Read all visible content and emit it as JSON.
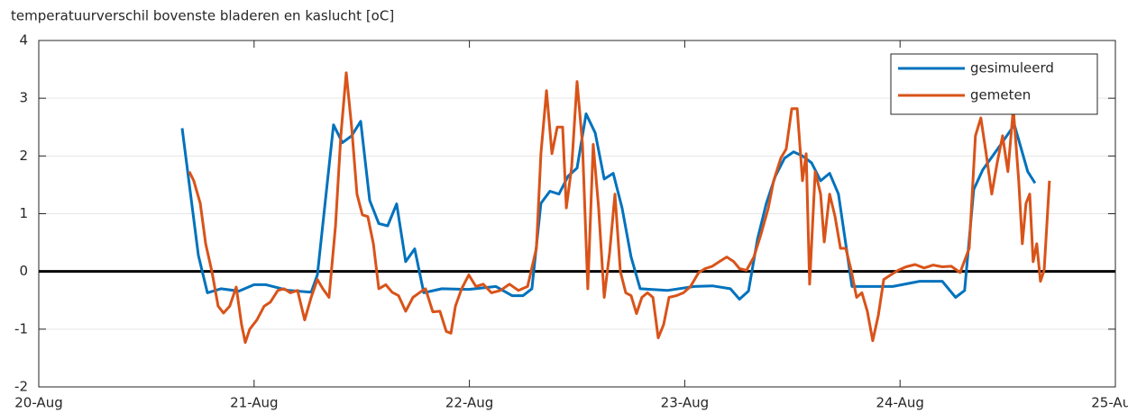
{
  "chart_data": {
    "type": "line",
    "title": "temperatuurverschil bovenste bladeren en kaslucht [oC]",
    "xlim": [
      0,
      5
    ],
    "xticks": [
      {
        "value": 0,
        "label": "20-Aug"
      },
      {
        "value": 1,
        "label": "21-Aug"
      },
      {
        "value": 2,
        "label": "22-Aug"
      },
      {
        "value": 3,
        "label": "23-Aug"
      },
      {
        "value": 4,
        "label": "24-Aug"
      },
      {
        "value": 5,
        "label": "25-Aug"
      }
    ],
    "ylim": [
      -2,
      4
    ],
    "yticks": [
      -2,
      -1,
      0,
      1,
      2,
      3,
      4
    ],
    "grid": true,
    "hlines": [
      0
    ],
    "legend": "northeast",
    "series": [
      {
        "name": "gesimuleerd",
        "color": "#0072BD",
        "x": [
          0.666,
          0.741,
          0.783,
          0.846,
          0.93,
          1.0,
          1.055,
          1.16,
          1.265,
          1.294,
          1.369,
          1.41,
          1.453,
          1.495,
          1.537,
          1.579,
          1.62,
          1.662,
          1.704,
          1.746,
          1.788,
          1.872,
          1.997,
          2.123,
          2.198,
          2.249,
          2.29,
          2.332,
          2.374,
          2.416,
          2.458,
          2.5,
          2.542,
          2.584,
          2.626,
          2.668,
          2.709,
          2.751,
          2.793,
          2.919,
          3.044,
          3.128,
          3.212,
          3.254,
          3.296,
          3.338,
          3.379,
          3.421,
          3.463,
          3.505,
          3.547,
          3.589,
          3.631,
          3.673,
          3.714,
          3.777,
          3.882,
          3.966,
          4.091,
          4.196,
          4.258,
          4.3,
          4.342,
          4.384,
          4.468,
          4.531,
          4.593,
          4.627
        ],
        "values": [
          2.48,
          0.28,
          -0.37,
          -0.3,
          -0.34,
          -0.23,
          -0.23,
          -0.33,
          -0.36,
          -0.06,
          2.54,
          2.23,
          2.35,
          2.6,
          1.23,
          0.83,
          0.79,
          1.17,
          0.17,
          0.39,
          -0.37,
          -0.3,
          -0.31,
          -0.26,
          -0.42,
          -0.42,
          -0.3,
          1.18,
          1.39,
          1.34,
          1.65,
          1.79,
          2.73,
          2.4,
          1.6,
          1.7,
          1.1,
          0.25,
          -0.3,
          -0.33,
          -0.26,
          -0.25,
          -0.3,
          -0.48,
          -0.34,
          0.56,
          1.18,
          1.65,
          1.96,
          2.07,
          2.0,
          1.88,
          1.57,
          1.7,
          1.34,
          -0.26,
          -0.26,
          -0.26,
          -0.17,
          -0.17,
          -0.45,
          -0.33,
          1.42,
          1.76,
          2.2,
          2.54,
          1.73,
          1.53
        ]
      },
      {
        "name": "gemeten",
        "color": "#D95319",
        "x": [
          0.699,
          0.72,
          0.75,
          0.775,
          0.804,
          0.833,
          0.858,
          0.887,
          0.917,
          0.942,
          0.959,
          0.98,
          1.013,
          1.047,
          1.076,
          1.11,
          1.139,
          1.168,
          1.202,
          1.235,
          1.265,
          1.294,
          1.319,
          1.348,
          1.378,
          1.403,
          1.428,
          1.453,
          1.478,
          1.503,
          1.528,
          1.554,
          1.579,
          1.612,
          1.641,
          1.671,
          1.704,
          1.738,
          1.767,
          1.796,
          1.83,
          1.863,
          1.893,
          1.914,
          1.935,
          1.964,
          1.997,
          2.03,
          2.064,
          2.102,
          2.144,
          2.186,
          2.228,
          2.27,
          2.311,
          2.332,
          2.358,
          2.383,
          2.408,
          2.433,
          2.45,
          2.475,
          2.5,
          2.525,
          2.55,
          2.575,
          2.6,
          2.626,
          2.651,
          2.676,
          2.701,
          2.726,
          2.751,
          2.776,
          2.801,
          2.827,
          2.852,
          2.877,
          2.902,
          2.927,
          2.961,
          2.994,
          3.027,
          3.065,
          3.095,
          3.128,
          3.161,
          3.195,
          3.228,
          3.254,
          3.287,
          3.321,
          3.354,
          3.388,
          3.413,
          3.446,
          3.471,
          3.497,
          3.522,
          3.547,
          3.564,
          3.58,
          3.606,
          3.631,
          3.648,
          3.673,
          3.698,
          3.723,
          3.748,
          3.773,
          3.798,
          3.823,
          3.848,
          3.873,
          3.899,
          3.924,
          3.957,
          3.991,
          4.028,
          4.07,
          4.112,
          4.154,
          4.196,
          4.238,
          4.279,
          4.321,
          4.35,
          4.375,
          4.4,
          4.426,
          4.451,
          4.476,
          4.501,
          4.526,
          4.551,
          4.568,
          4.585,
          4.602,
          4.618,
          4.635,
          4.652,
          4.669,
          4.694
        ],
        "values": [
          1.73,
          1.57,
          1.18,
          0.48,
          0,
          -0.6,
          -0.72,
          -0.6,
          -0.27,
          -0.92,
          -1.23,
          -1.0,
          -0.84,
          -0.6,
          -0.53,
          -0.33,
          -0.3,
          -0.37,
          -0.33,
          -0.84,
          -0.45,
          -0.14,
          -0.3,
          -0.45,
          0.79,
          2.35,
          3.44,
          2.5,
          1.34,
          0.98,
          0.95,
          0.48,
          -0.3,
          -0.23,
          -0.36,
          -0.42,
          -0.69,
          -0.45,
          -0.37,
          -0.3,
          -0.7,
          -0.69,
          -1.04,
          -1.07,
          -0.6,
          -0.3,
          -0.06,
          -0.26,
          -0.22,
          -0.37,
          -0.33,
          -0.22,
          -0.33,
          -0.26,
          0.4,
          2.04,
          3.13,
          2.04,
          2.5,
          2.5,
          1.1,
          1.81,
          3.29,
          2.2,
          -0.3,
          2.2,
          1.1,
          -0.45,
          0.33,
          1.34,
          0,
          -0.37,
          -0.42,
          -0.73,
          -0.45,
          -0.37,
          -0.45,
          -1.15,
          -0.92,
          -0.45,
          -0.42,
          -0.37,
          -0.26,
          -0.02,
          0.05,
          0.09,
          0.17,
          0.25,
          0.17,
          0.05,
          0.02,
          0.25,
          0.64,
          1.1,
          1.57,
          1.96,
          2.12,
          2.82,
          2.82,
          1.57,
          2.04,
          -0.22,
          1.73,
          1.34,
          0.51,
          1.34,
          0.95,
          0.4,
          0.4,
          0.02,
          -0.45,
          -0.37,
          -0.69,
          -1.2,
          -0.76,
          -0.14,
          -0.06,
          0.02,
          0.08,
          0.12,
          0.06,
          0.11,
          0.08,
          0.09,
          -0.02,
          0.4,
          2.35,
          2.66,
          2.04,
          1.34,
          1.88,
          2.35,
          1.73,
          2.82,
          1.57,
          0.48,
          1.18,
          1.34,
          0.17,
          0.48,
          -0.17,
          0.02,
          1.57
        ]
      }
    ]
  }
}
